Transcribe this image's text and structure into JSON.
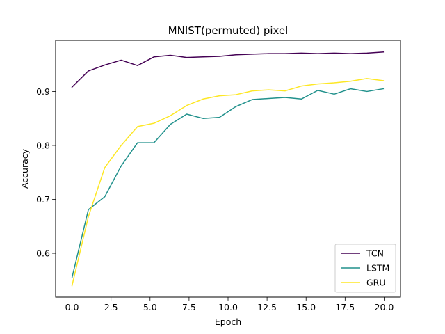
{
  "chart_data": {
    "type": "line",
    "title": "MNIST(permuted) pixel",
    "xlabel": "Epoch",
    "ylabel": "Accuracy",
    "xlim": [
      -1.05,
      21.05
    ],
    "ylim": [
      0.5188,
      0.9947
    ],
    "x_ticks": [
      0.0,
      2.5,
      5.0,
      7.5,
      10.0,
      12.5,
      15.0,
      17.5,
      20.0
    ],
    "x_tick_labels": [
      "0.0",
      "2.5",
      "5.0",
      "7.5",
      "10.0",
      "12.5",
      "15.0",
      "17.5",
      "20.0"
    ],
    "y_ticks": [
      0.6,
      0.7,
      0.8,
      0.9
    ],
    "y_tick_labels": [
      "0.6",
      "0.7",
      "0.8",
      "0.9"
    ],
    "grid": false,
    "legend_position": "lower-right",
    "x": [
      0,
      1.05,
      2.1,
      3.15,
      4.2,
      5.25,
      6.3,
      7.35,
      8.4,
      9.45,
      10.5,
      11.55,
      12.6,
      13.65,
      14.7,
      15.75,
      16.8,
      17.85,
      18.9,
      19.95
    ],
    "series": [
      {
        "name": "TCN",
        "color": "#440154",
        "values": [
          0.908,
          0.938,
          0.949,
          0.958,
          0.948,
          0.964,
          0.967,
          0.963,
          0.964,
          0.965,
          0.968,
          0.969,
          0.97,
          0.97,
          0.971,
          0.97,
          0.971,
          0.97,
          0.971,
          0.973
        ]
      },
      {
        "name": "LSTM",
        "color": "#21918c",
        "values": [
          0.555,
          0.681,
          0.705,
          0.762,
          0.805,
          0.805,
          0.839,
          0.858,
          0.85,
          0.852,
          0.872,
          0.885,
          0.887,
          0.889,
          0.886,
          0.902,
          0.895,
          0.905,
          0.9,
          0.905
        ]
      },
      {
        "name": "GRU",
        "color": "#fde725",
        "values": [
          0.54,
          0.668,
          0.759,
          0.8,
          0.835,
          0.841,
          0.855,
          0.874,
          0.886,
          0.892,
          0.894,
          0.901,
          0.903,
          0.901,
          0.91,
          0.914,
          0.916,
          0.919,
          0.924,
          0.92
        ]
      }
    ]
  }
}
